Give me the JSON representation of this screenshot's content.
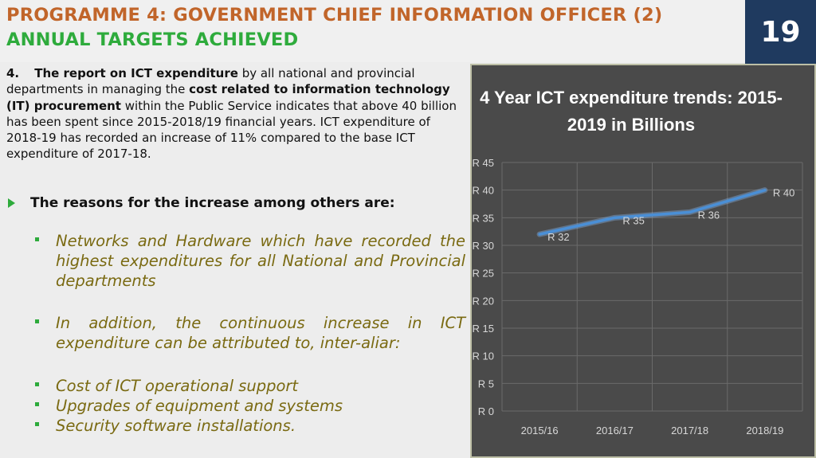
{
  "header": {
    "title_line1": "PROGRAMME 4: GOVERNMENT CHIEF INFORMATION OFFICER (2)",
    "title_line2": "ANNUAL TARGETS ACHIEVED",
    "page_number": "19"
  },
  "body": {
    "para_number": "4.",
    "para_bold1": "The report on ICT expenditure",
    "para_text1": " by all national and provincial departments in managing the ",
    "para_bold2": "cost related to information technology (IT) procurement",
    "para_text2": " within the Public Service indicates that above 40 billion has been spent since 2015-2018/19 financial years. ICT expenditure of 2018-19 has recorded an increase of 11% compared to the base ICT expenditure of 2017-18.",
    "reasons_heading": "The reasons for the increase among others are:",
    "bullets": [
      "Networks and Hardware which have recorded the highest expenditures for all National and Provincial departments",
      "In addition, the continuous increase in ICT expenditure can be attributed to, inter-aliar:",
      "Cost of ICT operational support",
      "Upgrades of equipment and systems",
      "Security software installations."
    ]
  },
  "chart_data": {
    "type": "line",
    "title": "4 Year ICT expenditure trends: 2015-2019 in Billions",
    "categories": [
      "2015/16",
      "2016/17",
      "2017/18",
      "2018/19"
    ],
    "series": [
      {
        "values": [
          32,
          35,
          36,
          40
        ],
        "labels": [
          "R 32",
          "R 35",
          "R 36",
          "R 40"
        ]
      }
    ],
    "ylim": [
      0,
      45
    ],
    "yticks": [
      0,
      5,
      10,
      15,
      20,
      25,
      30,
      35,
      40,
      45
    ],
    "ytick_labels": [
      "R 0",
      "R 5",
      "R 10",
      "R 15",
      "R 20",
      "R 25",
      "R 30",
      "R 35",
      "R 40",
      "R 45"
    ],
    "grid": true,
    "line_color": "#4a8fd6",
    "background_color": "#4a4a4a"
  }
}
